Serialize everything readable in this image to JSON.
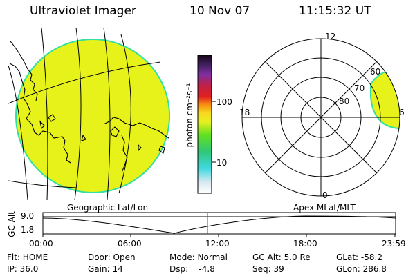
{
  "header": {
    "instrument": "Ultraviolet Imager",
    "date": "10 Nov 07",
    "time": "11:15:32 UT"
  },
  "colorbar": {
    "label": "photon cm⁻²s⁻¹",
    "ticks": [
      "100",
      "10"
    ]
  },
  "polar": {
    "mlt_labels": [
      "12",
      "18",
      "6",
      "0"
    ],
    "lat_labels": [
      "60",
      "70",
      "80"
    ]
  },
  "altitude_panel": {
    "ylabel": "GC Alt",
    "yticks": [
      "9.0",
      "1.8"
    ],
    "left_caption": "Geographic Lat/Lon",
    "right_caption": "Apex MLat/MLT",
    "xticks": [
      "00:00",
      "06:00",
      "12:00",
      "18:00",
      "23:59"
    ]
  },
  "status": {
    "flt": "Flt: HOME",
    "ip": "IP: 36.0",
    "door": "Door: Open",
    "gain": "Gain: 14",
    "mode": "Mode: Normal",
    "dsp": "Dsp:    -4.8",
    "gcalt": "GC Alt: 5.0 Re",
    "seq": "Seq: 39",
    "glat": "GLat: -58.2",
    "glon": "GLon: 286.8"
  },
  "colors": {
    "image_fill": "#e6f21a",
    "limb_edge": "#33e0a0",
    "marker": "#c0202a"
  }
}
